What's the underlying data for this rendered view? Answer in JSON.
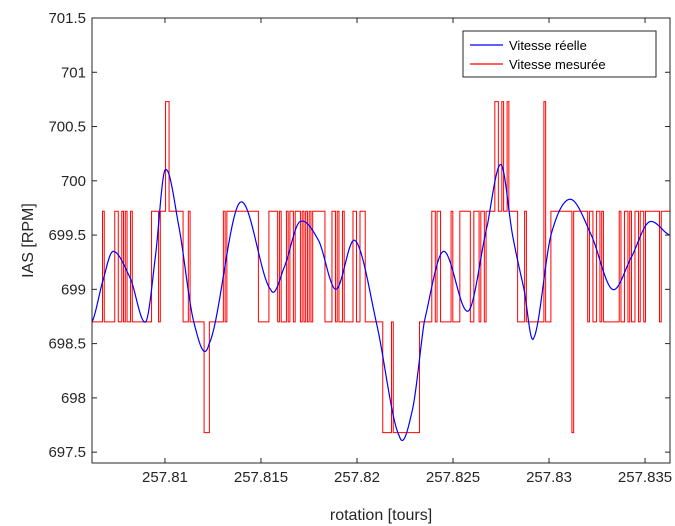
{
  "colors": {
    "real": "#0000ff",
    "measured": "#ff0000",
    "axis": "#262626",
    "background": "#ffffff"
  },
  "chart_data": {
    "type": "line",
    "xlabel": "rotation [tours]",
    "ylabel": "IAS [RPM]",
    "xlim": [
      257.8062,
      257.8363
    ],
    "ylim": [
      697.4,
      701.5
    ],
    "xticks": [
      257.81,
      257.815,
      257.82,
      257.825,
      257.83,
      257.835
    ],
    "xtick_labels": [
      "257.81",
      "257.815",
      "257.82",
      "257.825",
      "257.83",
      "257.835"
    ],
    "yticks": [
      697.5,
      698,
      698.5,
      699,
      699.5,
      700,
      700.5,
      701,
      701.5
    ],
    "ytick_labels": [
      "697.5",
      "698",
      "698.5",
      "699",
      "699.5",
      "700",
      "700.5",
      "701",
      "701.5"
    ],
    "legend": {
      "position": "top-right",
      "entries": [
        "Vitesse réelle",
        "Vitesse mesurée"
      ]
    },
    "series": [
      {
        "name": "Vitesse réelle",
        "color": "#0000ff",
        "x": [
          257.8062,
          257.8068,
          257.8073,
          257.8082,
          257.809,
          257.8095,
          257.81,
          257.8107,
          257.8115,
          257.8123,
          257.8139,
          257.8155,
          257.8162,
          257.817,
          257.818,
          257.8189,
          257.8199,
          257.821,
          257.8222,
          257.8229,
          257.8235,
          257.8245,
          257.8258,
          257.8268,
          257.8275,
          257.8281,
          257.8287,
          257.8292,
          257.8301,
          257.8311,
          257.8322,
          257.8333,
          257.8343,
          257.8352,
          257.8363
        ],
        "y": [
          698.7,
          699.1,
          699.35,
          699.1,
          698.7,
          699.3,
          700.1,
          699.6,
          698.7,
          698.5,
          699.8,
          699.0,
          699.2,
          699.62,
          699.45,
          699.0,
          699.45,
          698.7,
          697.65,
          697.9,
          698.7,
          699.35,
          698.8,
          699.6,
          700.15,
          699.5,
          699.0,
          698.55,
          699.5,
          699.83,
          699.5,
          699.0,
          699.3,
          699.62,
          699.5
        ]
      },
      {
        "name": "Vitesse mesurée",
        "color": "#ff0000",
        "levels": [
          697.68,
          698.7,
          699.72,
          700.73
        ]
      }
    ]
  }
}
